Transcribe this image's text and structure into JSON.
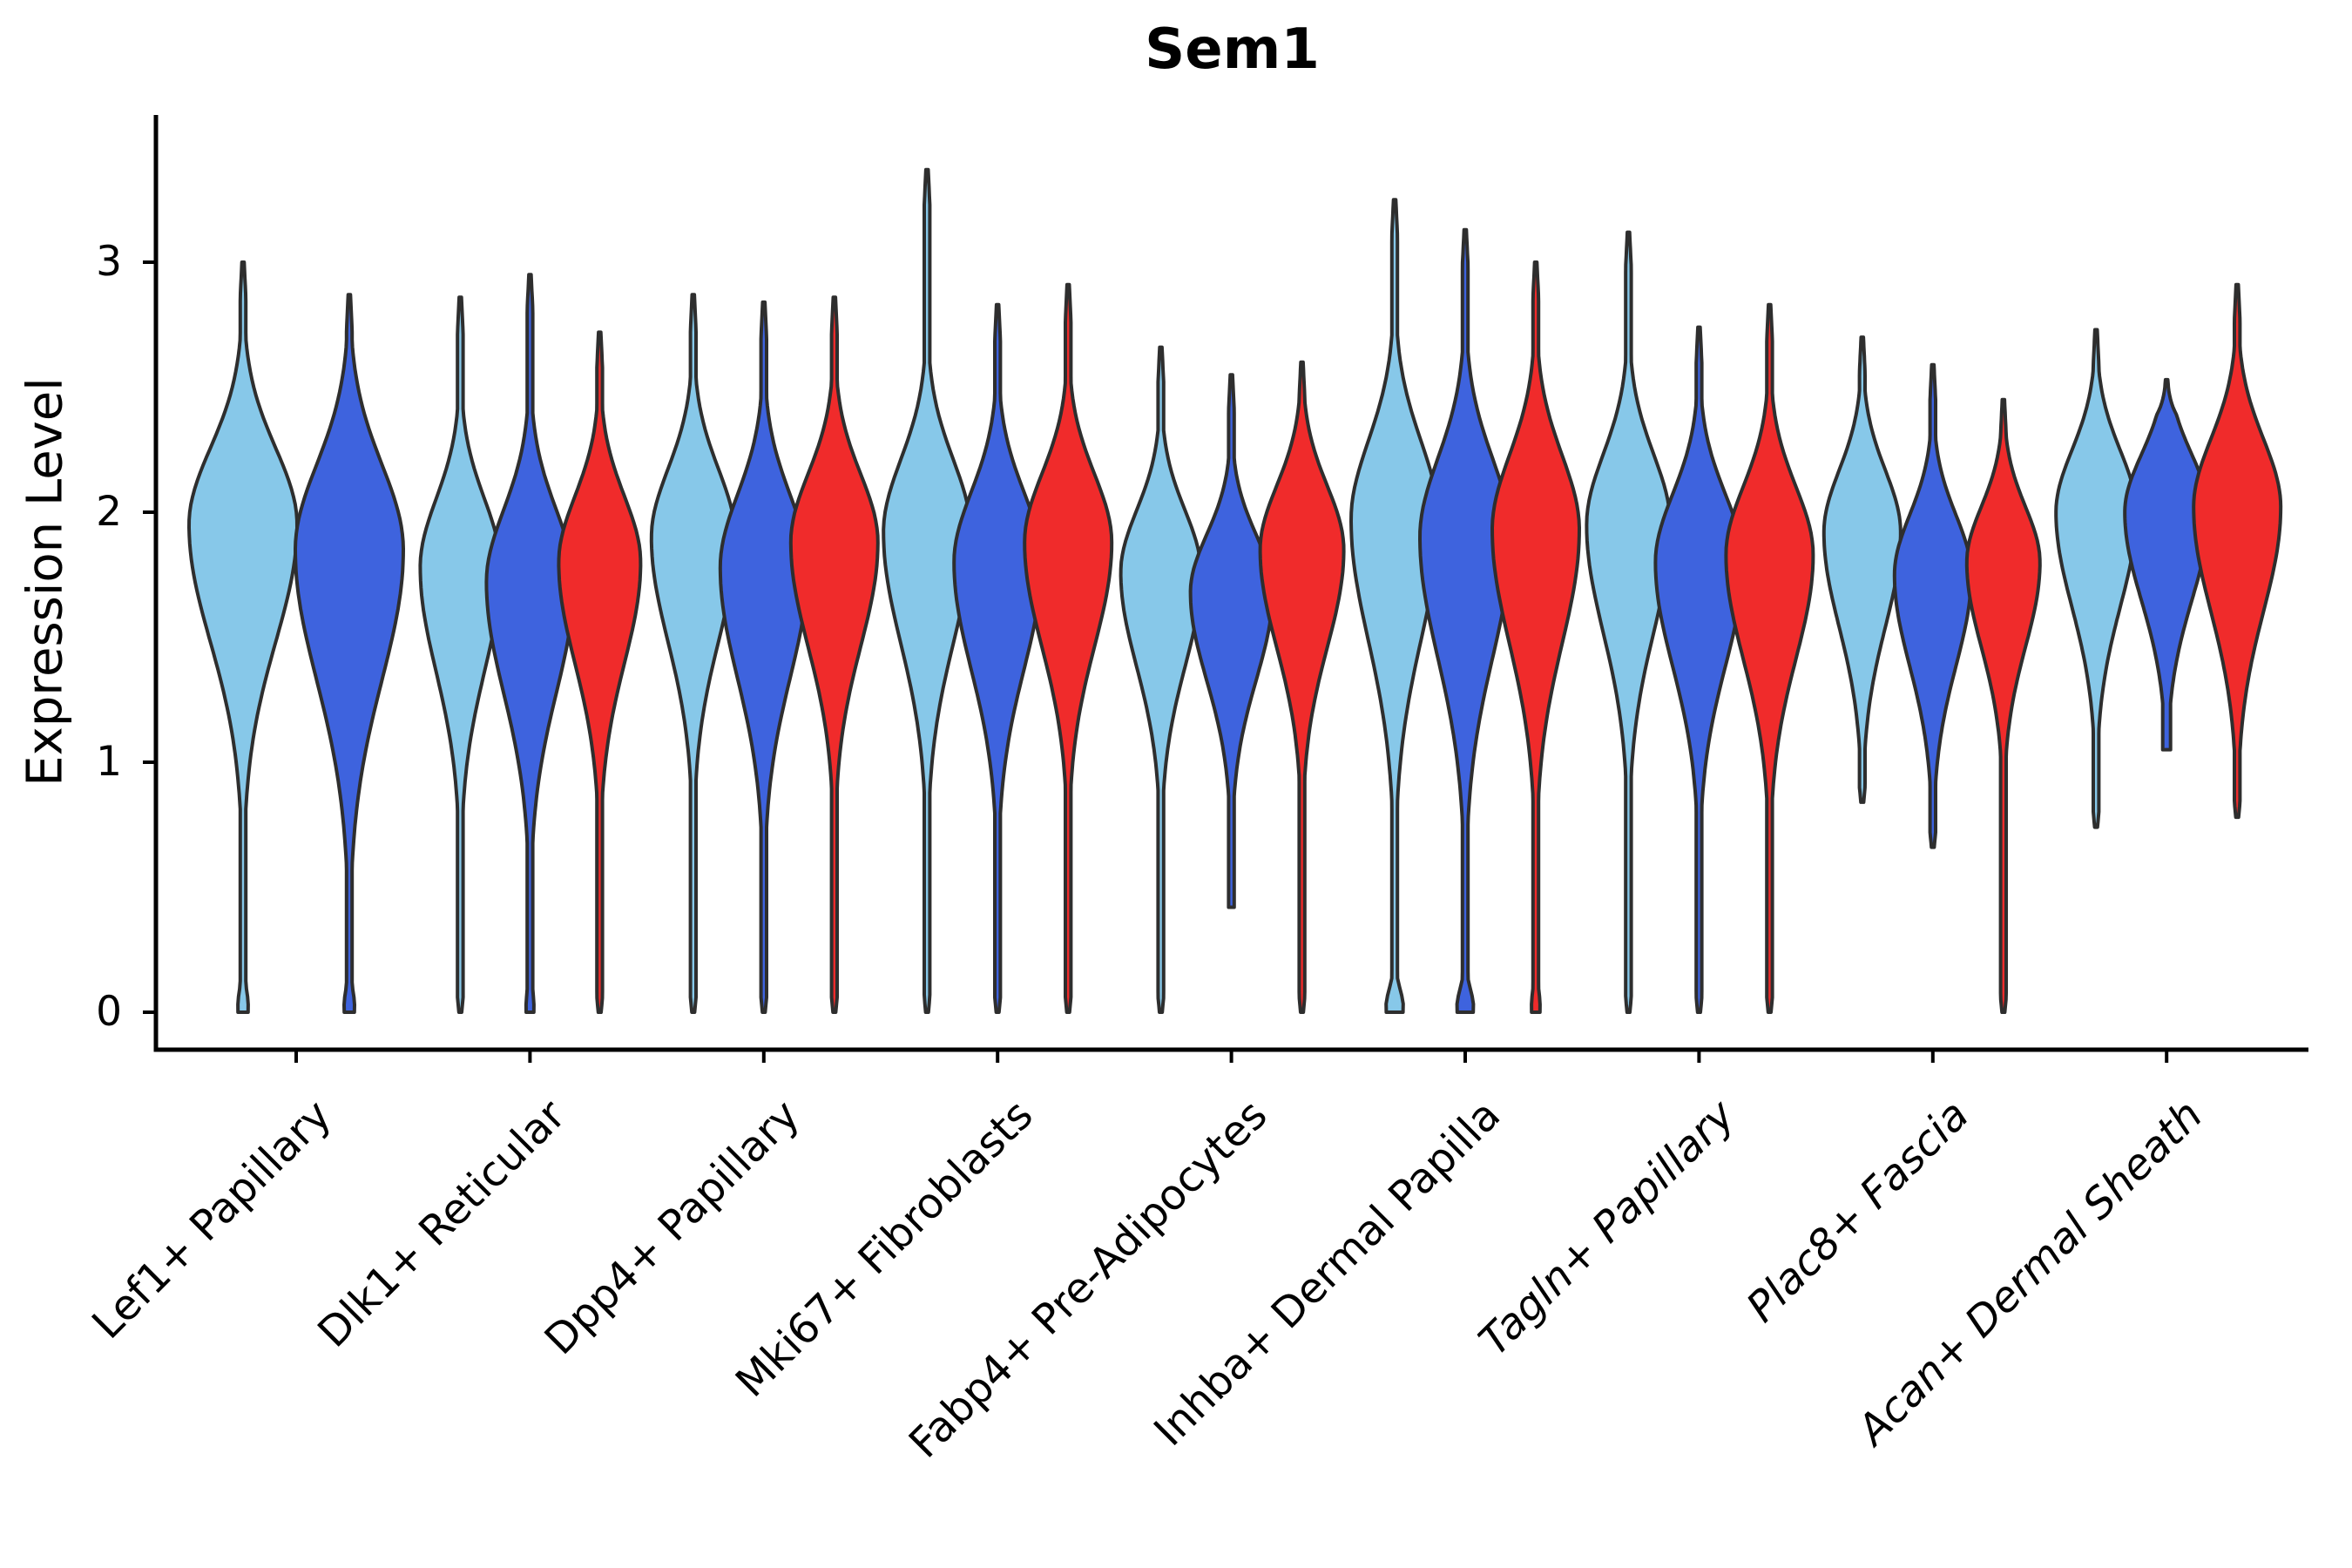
{
  "title": "Sem1",
  "ylabel": "Expression Level",
  "chart_data": {
    "type": "violin",
    "title": "Sem1",
    "xlabel": "",
    "ylabel": "Expression Level",
    "grid": false,
    "legend": "none",
    "ylim": [
      -0.17,
      3.6
    ],
    "yticks": [
      0,
      1,
      2,
      3
    ],
    "categories": [
      {
        "label": "Lef1+ Papillary",
        "italic": false
      },
      {
        "label": "Dlk1+ Reticular",
        "italic": false
      },
      {
        "label": "Dpp4+ Papillary",
        "italic": false
      },
      {
        "label": "Mki67+ Fibroblasts",
        "italic": false
      },
      {
        "label": "Fabp4+ Pre-Adipocytes",
        "italic": false
      },
      {
        "label": "Inhba+ Dermal Papilla",
        "italic": false
      },
      {
        "label": "Tagln+ Papillary",
        "italic": true
      },
      {
        "label": "Plac8+ Fascia",
        "italic": true
      },
      {
        "label": "Acan+ Dermal Sheath",
        "italic": true
      }
    ],
    "series": [
      {
        "name": "light-blue-sample",
        "color": "#87C8E9"
      },
      {
        "name": "dark-blue-sample",
        "color": "#3E63DE"
      },
      {
        "name": "red-sample",
        "color": "#F02B2B"
      }
    ],
    "violin_outline_color": "#2E2E2E",
    "axis_color": "#000000",
    "violins": [
      {
        "cat": 0,
        "dx": -61,
        "series": 0,
        "tip": 3.0,
        "peak": 1.95,
        "halfwidth": 62,
        "spread": 0.36,
        "bottom": 0,
        "blob": 5,
        "end": "flat"
      },
      {
        "cat": 0,
        "dx": 61,
        "series": 1,
        "tip": 2.87,
        "peak": 1.85,
        "halfwidth": 62,
        "spread": 0.4,
        "bottom": 0,
        "blob": 5,
        "end": "flat"
      },
      {
        "cat": 1,
        "dx": -80,
        "series": 0,
        "tip": 2.86,
        "peak": 1.78,
        "halfwidth": 46,
        "spread": 0.32,
        "bottom": 0,
        "blob": 0,
        "end": "point"
      },
      {
        "cat": 1,
        "dx": 0,
        "series": 1,
        "tip": 2.95,
        "peak": 1.72,
        "halfwidth": 50,
        "spread": 0.34,
        "bottom": 0,
        "blob": 3.5,
        "end": "flat"
      },
      {
        "cat": 1,
        "dx": 80,
        "series": 2,
        "tip": 2.72,
        "peak": 1.8,
        "halfwidth": 47,
        "spread": 0.31,
        "bottom": 0,
        "blob": 0,
        "end": "point"
      },
      {
        "cat": 2,
        "dx": -81,
        "series": 0,
        "tip": 2.87,
        "peak": 1.9,
        "halfwidth": 48,
        "spread": 0.32,
        "bottom": 0,
        "blob": 0,
        "end": "point"
      },
      {
        "cat": 2,
        "dx": 0,
        "series": 1,
        "tip": 2.84,
        "peak": 1.78,
        "halfwidth": 50,
        "spread": 0.34,
        "bottom": 0,
        "blob": 0,
        "end": "point"
      },
      {
        "cat": 2,
        "dx": 81,
        "series": 2,
        "tip": 2.86,
        "peak": 1.88,
        "halfwidth": 50,
        "spread": 0.32,
        "bottom": 0,
        "blob": 0,
        "end": "point"
      },
      {
        "cat": 3,
        "dx": -81,
        "series": 0,
        "tip": 3.37,
        "peak": 1.92,
        "halfwidth": 50,
        "spread": 0.34,
        "bottom": 0,
        "blob": 0,
        "end": "point"
      },
      {
        "cat": 3,
        "dx": 0,
        "series": 1,
        "tip": 2.83,
        "peak": 1.8,
        "halfwidth": 50,
        "spread": 0.33,
        "bottom": 0,
        "blob": 0,
        "end": "point"
      },
      {
        "cat": 3,
        "dx": 81,
        "series": 2,
        "tip": 2.91,
        "peak": 1.88,
        "halfwidth": 50,
        "spread": 0.32,
        "bottom": 0,
        "blob": 0,
        "end": "point"
      },
      {
        "cat": 4,
        "dx": -81,
        "series": 0,
        "tip": 2.66,
        "peak": 1.76,
        "halfwidth": 46,
        "spread": 0.29,
        "bottom": 0,
        "blob": 0,
        "end": "point"
      },
      {
        "cat": 4,
        "dx": 0,
        "series": 1,
        "tip": 2.55,
        "peak": 1.68,
        "halfwidth": 47,
        "spread": 0.27,
        "bottom": 0.42,
        "blob": 0,
        "end": "blunt"
      },
      {
        "cat": 4,
        "dx": 81,
        "series": 2,
        "tip": 2.6,
        "peak": 1.85,
        "halfwidth": 48,
        "spread": 0.3,
        "bottom": 0,
        "blob": 0,
        "end": "point"
      },
      {
        "cat": 5,
        "dx": -81,
        "series": 0,
        "tip": 3.25,
        "peak": 1.97,
        "halfwidth": 50,
        "spread": 0.37,
        "bottom": 0,
        "blob": 9,
        "end": "flat"
      },
      {
        "cat": 5,
        "dx": 0,
        "series": 1,
        "tip": 3.13,
        "peak": 1.9,
        "halfwidth": 52,
        "spread": 0.37,
        "bottom": 0,
        "blob": 8.5,
        "end": "flat"
      },
      {
        "cat": 5,
        "dx": 81,
        "series": 2,
        "tip": 3.0,
        "peak": 1.93,
        "halfwidth": 50,
        "spread": 0.35,
        "bottom": 0,
        "blob": 4,
        "end": "flat"
      },
      {
        "cat": 6,
        "dx": -81,
        "series": 0,
        "tip": 3.12,
        "peak": 1.95,
        "halfwidth": 48,
        "spread": 0.33,
        "bottom": 0,
        "blob": 0,
        "end": "point"
      },
      {
        "cat": 6,
        "dx": 0,
        "series": 1,
        "tip": 2.74,
        "peak": 1.8,
        "halfwidth": 50,
        "spread": 0.32,
        "bottom": 0,
        "blob": 0,
        "end": "point"
      },
      {
        "cat": 6,
        "dx": 81,
        "series": 2,
        "tip": 2.83,
        "peak": 1.83,
        "halfwidth": 50,
        "spread": 0.32,
        "bottom": 0,
        "blob": 0,
        "end": "point"
      },
      {
        "cat": 7,
        "dx": -81,
        "series": 0,
        "tip": 2.7,
        "peak": 1.92,
        "halfwidth": 44,
        "spread": 0.29,
        "bottom": 0.84,
        "blob": 0,
        "end": "point"
      },
      {
        "cat": 7,
        "dx": 0,
        "series": 1,
        "tip": 2.59,
        "peak": 1.75,
        "halfwidth": 44,
        "spread": 0.28,
        "bottom": 0.66,
        "blob": 0,
        "end": "point"
      },
      {
        "cat": 7,
        "dx": 81,
        "series": 2,
        "tip": 2.45,
        "peak": 1.8,
        "halfwidth": 42,
        "spread": 0.26,
        "bottom": 0,
        "blob": 0,
        "end": "point"
      },
      {
        "cat": 8,
        "dx": -81,
        "series": 0,
        "tip": 2.73,
        "peak": 2.0,
        "halfwidth": 46,
        "spread": 0.29,
        "bottom": 0.74,
        "blob": 0,
        "end": "point"
      },
      {
        "cat": 8,
        "dx": 0,
        "series": 1,
        "tip": 2.53,
        "peak": 2.0,
        "halfwidth": 48,
        "spread": 0.27,
        "bottom": 1.05,
        "blob": 0,
        "end": "blunt",
        "tailw": 4.5
      },
      {
        "cat": 8,
        "dx": 81,
        "series": 2,
        "tip": 2.91,
        "peak": 2.02,
        "halfwidth": 50,
        "spread": 0.32,
        "bottom": 0.78,
        "blob": 0,
        "end": "point"
      }
    ]
  }
}
